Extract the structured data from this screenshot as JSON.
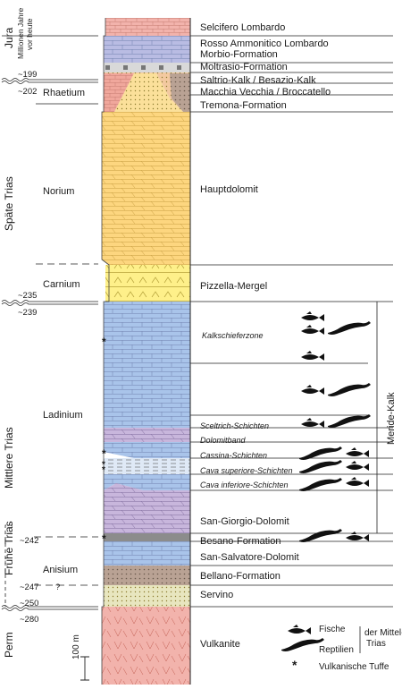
{
  "header": {
    "period": "Jura",
    "age_note_line1": "Millionen Jahre",
    "age_note_line2": "vor heute"
  },
  "periods": [
    {
      "key": "jura",
      "label": "Jura"
    },
    {
      "key": "spaete_trias",
      "label": "Späte Trias"
    },
    {
      "key": "mittlere_trias",
      "label": "Mittlere Trias"
    },
    {
      "key": "fruehe_trias",
      "label": "Frühe Trias"
    },
    {
      "key": "perm",
      "label": "Perm"
    }
  ],
  "stages": {
    "rhaetium": "Rhaetium",
    "norium": "Norium",
    "carnium": "Carnium",
    "ladinium": "Ladinium",
    "anisium": "Anisium"
  },
  "ages": {
    "a199": "~199",
    "a202": "~202",
    "a235": "~235",
    "a239": "~239",
    "a242": "~242",
    "a247": "~247",
    "a250": "~250",
    "a280": "~280",
    "question": "?"
  },
  "formations": {
    "selcifero": "Selcifero Lombardo",
    "rosso": "Rosso Ammonitico Lombardo",
    "morbio": "Morbio-Formation",
    "moltrasio": "Moltrasio-Formation",
    "saltrio": "Saltrio-Kalk / Besazio-Kalk",
    "macchia": "Macchia Vecchia / Broccatello",
    "tremona": "Tremona-Formation",
    "hauptdolomit": "Hauptdolomit",
    "pizzella": "Pizzella-Mergel",
    "kalkschiefer": "Kalkschieferzone",
    "sceltrich": "Sceltrich-Schichten",
    "dolomitband": "Dolomitband",
    "cassina": "Cassina-Schichten",
    "cava_sup": "Cava superiore-Schichten",
    "cava_inf": "Cava inferiore-Schichten",
    "san_giorgio": "San-Giorgio-Dolomit",
    "besano": "Besano-Formation",
    "san_salvatore": "San-Salvatore-Dolomit",
    "bellano": "Bellano-Formation",
    "servino": "Servino",
    "vulkanite": "Vulkanite"
  },
  "meride_label": "Meride-Kalk",
  "scale_label": "100 m",
  "legend": {
    "fische": "Fische",
    "reptilien": "Reptilien",
    "der_mittel": "der Mittel-",
    "trias": "Trias",
    "tuffe": "Vulkanische Tuffe",
    "asterisk": "*"
  },
  "colors": {
    "pink": "#f2b3ac",
    "lavender": "#b9bce3",
    "yellow": "#fdd67f",
    "pale_yellow": "#fef08a",
    "blue": "#a9c4ea",
    "purple": "#c8b6dc",
    "brown": "#b9a294",
    "olive": "#e8e6bf",
    "salmon": "#f0a79c"
  }
}
